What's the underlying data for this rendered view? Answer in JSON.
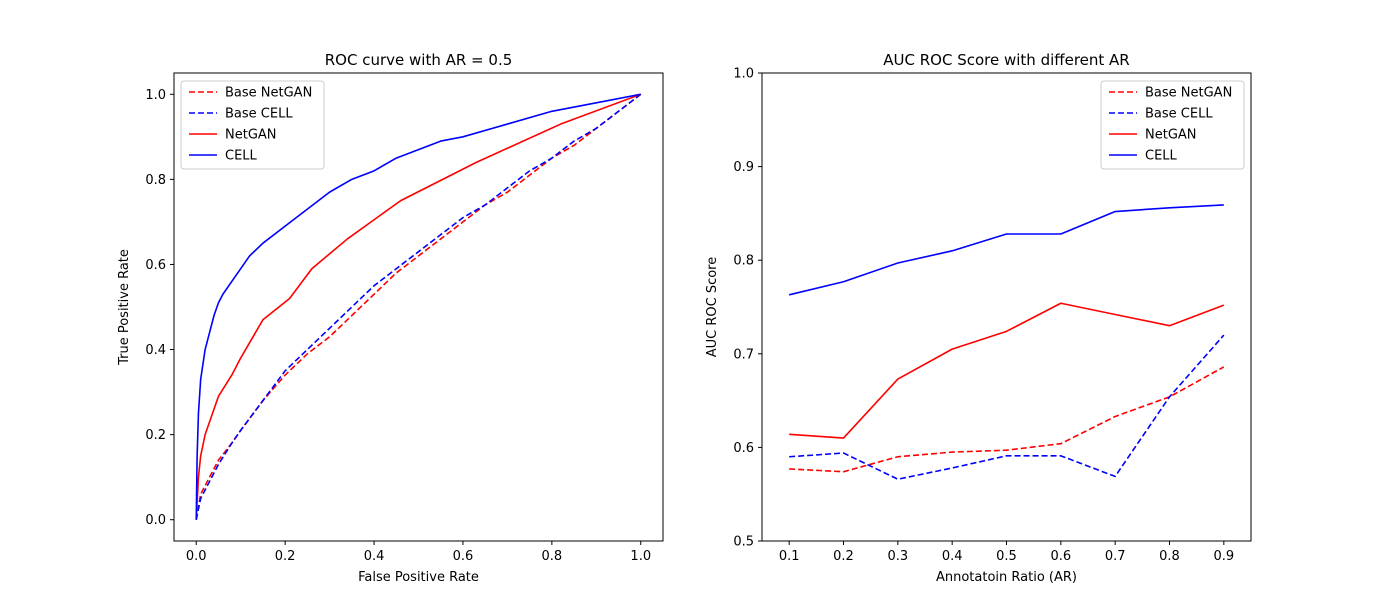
{
  "chart_data": [
    {
      "type": "line",
      "title": "ROC curve with AR = 0.5",
      "xlabel": "False Positive Rate",
      "ylabel": "True Positive Rate",
      "xlim": [
        -0.05,
        1.05
      ],
      "ylim": [
        -0.05,
        1.05
      ],
      "xticks": [
        "0.0",
        "0.2",
        "0.4",
        "0.6",
        "0.8",
        "1.0"
      ],
      "yticks": [
        "0.0",
        "0.2",
        "0.4",
        "0.6",
        "0.8",
        "1.0"
      ],
      "legend_position": "top-left",
      "series": [
        {
          "name": "Base NetGAN",
          "color": "#ff0000",
          "dash": true,
          "points": [
            [
              0,
              0
            ],
            [
              0.01,
              0.06
            ],
            [
              0.03,
              0.1
            ],
            [
              0.05,
              0.14
            ],
            [
              0.08,
              0.18
            ],
            [
              0.1,
              0.21
            ],
            [
              0.15,
              0.28
            ],
            [
              0.2,
              0.34
            ],
            [
              0.25,
              0.39
            ],
            [
              0.3,
              0.43
            ],
            [
              0.35,
              0.48
            ],
            [
              0.4,
              0.53
            ],
            [
              0.45,
              0.58
            ],
            [
              0.5,
              0.62
            ],
            [
              0.55,
              0.66
            ],
            [
              0.6,
              0.7
            ],
            [
              0.65,
              0.74
            ],
            [
              0.7,
              0.77
            ],
            [
              0.75,
              0.81
            ],
            [
              0.8,
              0.85
            ],
            [
              0.85,
              0.88
            ],
            [
              0.9,
              0.92
            ],
            [
              0.95,
              0.96
            ],
            [
              1,
              1
            ]
          ]
        },
        {
          "name": "Base CELL",
          "color": "#0000ff",
          "dash": true,
          "points": [
            [
              0,
              0
            ],
            [
              0.01,
              0.05
            ],
            [
              0.03,
              0.09
            ],
            [
              0.05,
              0.13
            ],
            [
              0.08,
              0.18
            ],
            [
              0.1,
              0.21
            ],
            [
              0.15,
              0.28
            ],
            [
              0.2,
              0.35
            ],
            [
              0.25,
              0.4
            ],
            [
              0.3,
              0.45
            ],
            [
              0.35,
              0.5
            ],
            [
              0.4,
              0.55
            ],
            [
              0.45,
              0.59
            ],
            [
              0.5,
              0.63
            ],
            [
              0.55,
              0.67
            ],
            [
              0.6,
              0.71
            ],
            [
              0.65,
              0.74
            ],
            [
              0.7,
              0.78
            ],
            [
              0.75,
              0.82
            ],
            [
              0.8,
              0.85
            ],
            [
              0.85,
              0.89
            ],
            [
              0.9,
              0.92
            ],
            [
              0.95,
              0.96
            ],
            [
              1,
              1
            ]
          ]
        },
        {
          "name": "NetGAN",
          "color": "#ff0000",
          "dash": false,
          "points": [
            [
              0,
              0
            ],
            [
              0.005,
              0.1
            ],
            [
              0.01,
              0.15
            ],
            [
              0.02,
              0.2
            ],
            [
              0.03,
              0.23
            ],
            [
              0.05,
              0.29
            ],
            [
              0.08,
              0.34
            ],
            [
              0.1,
              0.38
            ],
            [
              0.15,
              0.47
            ],
            [
              0.21,
              0.52
            ],
            [
              0.26,
              0.59
            ],
            [
              0.34,
              0.66
            ],
            [
              0.46,
              0.75
            ],
            [
              0.63,
              0.84
            ],
            [
              0.82,
              0.93
            ],
            [
              1,
              1
            ]
          ]
        },
        {
          "name": "CELL",
          "color": "#0000ff",
          "dash": false,
          "points": [
            [
              0,
              0
            ],
            [
              0.002,
              0.15
            ],
            [
              0.005,
              0.25
            ],
            [
              0.01,
              0.33
            ],
            [
              0.02,
              0.4
            ],
            [
              0.03,
              0.44
            ],
            [
              0.04,
              0.48
            ],
            [
              0.05,
              0.51
            ],
            [
              0.06,
              0.53
            ],
            [
              0.08,
              0.56
            ],
            [
              0.1,
              0.59
            ],
            [
              0.12,
              0.62
            ],
            [
              0.15,
              0.65
            ],
            [
              0.2,
              0.69
            ],
            [
              0.25,
              0.73
            ],
            [
              0.3,
              0.77
            ],
            [
              0.35,
              0.8
            ],
            [
              0.4,
              0.82
            ],
            [
              0.45,
              0.85
            ],
            [
              0.5,
              0.87
            ],
            [
              0.55,
              0.89
            ],
            [
              0.6,
              0.9
            ],
            [
              0.7,
              0.93
            ],
            [
              0.8,
              0.96
            ],
            [
              0.9,
              0.98
            ],
            [
              1,
              1
            ]
          ]
        }
      ]
    },
    {
      "type": "line",
      "title": "AUC ROC Score with different AR",
      "xlabel": "Annotatoin Ratio (AR)",
      "ylabel": "AUC ROC Score",
      "xlim": [
        0.05,
        0.95
      ],
      "ylim": [
        0.5,
        1.0
      ],
      "xticks": [
        "0.1",
        "0.2",
        "0.3",
        "0.4",
        "0.5",
        "0.6",
        "0.7",
        "0.8",
        "0.9"
      ],
      "yticks": [
        "0.5",
        "0.6",
        "0.7",
        "0.8",
        "0.9",
        "1.0"
      ],
      "legend_position": "top-right",
      "x": [
        0.1,
        0.2,
        0.3,
        0.4,
        0.5,
        0.6,
        0.7,
        0.8,
        0.9
      ],
      "series": [
        {
          "name": "Base NetGAN",
          "color": "#ff0000",
          "dash": true,
          "values": [
            0.577,
            0.574,
            0.59,
            0.595,
            0.597,
            0.604,
            0.633,
            0.654,
            0.686
          ]
        },
        {
          "name": "Base CELL",
          "color": "#0000ff",
          "dash": true,
          "values": [
            0.59,
            0.594,
            0.566,
            0.578,
            0.591,
            0.591,
            0.569,
            0.654,
            0.72
          ]
        },
        {
          "name": "NetGAN",
          "color": "#ff0000",
          "dash": false,
          "values": [
            0.614,
            0.61,
            0.673,
            0.705,
            0.724,
            0.754,
            0.742,
            0.73,
            0.752
          ]
        },
        {
          "name": "CELL",
          "color": "#0000ff",
          "dash": false,
          "values": [
            0.763,
            0.777,
            0.797,
            0.81,
            0.828,
            0.828,
            0.852,
            0.856,
            0.859
          ]
        }
      ]
    }
  ]
}
